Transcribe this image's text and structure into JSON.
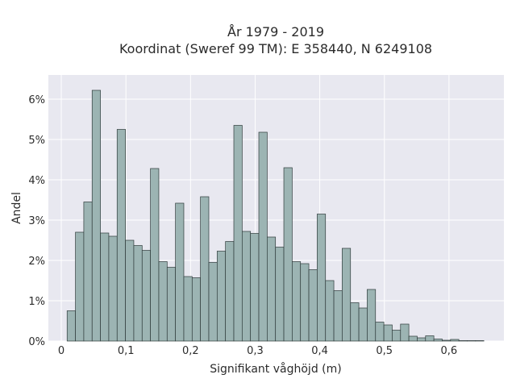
{
  "chart_data": {
    "type": "bar",
    "title": [
      "År 1979 - 2019",
      "Koordinat (Sweref 99 TM): E 358440, N 6249108"
    ],
    "xlabel": "Signifikant våghöjd (m)",
    "ylabel": "Andel",
    "xlim": [
      -0.02,
      0.685
    ],
    "ylim": [
      0,
      6.6
    ],
    "grid": true,
    "x_ticks": [
      {
        "value": 0,
        "label": "0"
      },
      {
        "value": 0.1,
        "label": "0,1"
      },
      {
        "value": 0.2,
        "label": "0,2"
      },
      {
        "value": 0.3,
        "label": "0,3"
      },
      {
        "value": 0.4,
        "label": "0,4"
      },
      {
        "value": 0.5,
        "label": "0,5"
      },
      {
        "value": 0.6,
        "label": "0,6"
      }
    ],
    "y_ticks": [
      {
        "value": 0,
        "label": "0%"
      },
      {
        "value": 1,
        "label": "1%"
      },
      {
        "value": 2,
        "label": "2%"
      },
      {
        "value": 3,
        "label": "3%"
      },
      {
        "value": 4,
        "label": "4%"
      },
      {
        "value": 5,
        "label": "5%"
      },
      {
        "value": 6,
        "label": "6%"
      }
    ],
    "bin_width": 0.0129,
    "bin_start": 0.009,
    "values": [
      0.75,
      2.7,
      3.45,
      6.22,
      2.68,
      2.6,
      5.25,
      2.5,
      2.37,
      2.25,
      4.28,
      1.97,
      1.83,
      3.42,
      1.6,
      1.57,
      3.58,
      1.95,
      2.23,
      2.47,
      5.35,
      2.72,
      2.67,
      5.18,
      2.58,
      2.33,
      4.3,
      1.97,
      1.92,
      1.77,
      3.15,
      1.5,
      1.25,
      2.3,
      0.95,
      0.82,
      1.28,
      0.47,
      0.4,
      0.27,
      0.42,
      0.12,
      0.08,
      0.13,
      0.05,
      0.02,
      0.04,
      0.01,
      0.01,
      0.01
    ],
    "colors": {
      "bar_fill": "#9cb4b3",
      "bar_stroke": "#2f3b3b",
      "plot_bg": "#e8e8f0",
      "grid": "#ffffff"
    }
  }
}
